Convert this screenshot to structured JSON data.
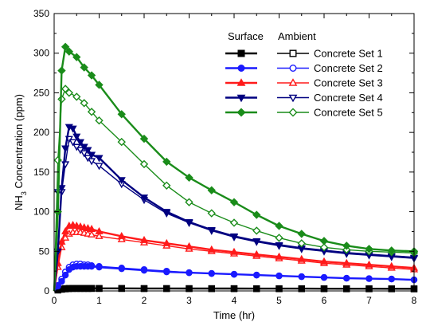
{
  "chart_data": {
    "type": "line",
    "xlabel": "Time (hr)",
    "ylabel_parts": [
      "NH",
      "3",
      " Concentration (ppm)"
    ],
    "xlim": [
      0,
      8
    ],
    "ylim": [
      0,
      350
    ],
    "xticks": [
      0,
      1,
      2,
      3,
      4,
      5,
      6,
      7,
      8
    ],
    "yticks": [
      0,
      50,
      100,
      150,
      200,
      250,
      300,
      350
    ],
    "grid": false,
    "legend": {
      "placement": "top-right",
      "header_surface": "Surface",
      "header_ambient": "Ambient"
    },
    "sets": [
      {
        "name": "Concrete Set 1",
        "color": "#000000",
        "surface_marker": "square",
        "ambient_marker": "square",
        "surface": {
          "x": [
            0,
            0.083,
            0.167,
            0.25,
            0.333,
            0.417,
            0.5,
            0.583,
            0.667,
            0.75,
            0.833,
            1,
            1.5,
            2,
            2.5,
            3,
            3.5,
            4,
            4.5,
            5,
            5.5,
            6,
            6.5,
            7,
            7.5,
            8
          ],
          "y": [
            0,
            1.5,
            2.5,
            3,
            3.2,
            3.3,
            3.3,
            3.3,
            3.3,
            3.3,
            3.3,
            3.2,
            3.2,
            3.1,
            3.1,
            3,
            3,
            3,
            2.9,
            2.9,
            2.9,
            2.8,
            2.8,
            2.8,
            2.7,
            2.7
          ]
        },
        "ambient": {
          "x": [
            0,
            0.083,
            0.167,
            0.25,
            0.333,
            0.417,
            0.5,
            0.583,
            0.667,
            0.75,
            0.833,
            1,
            1.5,
            2,
            2.5,
            3,
            3.5,
            4,
            4.5,
            5,
            5.5,
            6,
            6.5,
            7,
            7.5,
            8
          ],
          "y": [
            0,
            1,
            2,
            2.5,
            2.8,
            3,
            3,
            3,
            3,
            3,
            3,
            3,
            3,
            2.9,
            2.9,
            2.9,
            2.8,
            2.8,
            2.8,
            2.7,
            2.7,
            2.7,
            2.6,
            2.6,
            2.6,
            2.5
          ]
        }
      },
      {
        "name": "Concrete Set 2",
        "color": "#1a1aff",
        "surface_marker": "circle",
        "ambient_marker": "circle",
        "surface": {
          "x": [
            0,
            0.083,
            0.167,
            0.25,
            0.333,
            0.417,
            0.5,
            0.583,
            0.667,
            0.75,
            0.833,
            1,
            1.5,
            2,
            2.5,
            3,
            3.5,
            4,
            4.5,
            5,
            5.5,
            6,
            6.5,
            7,
            7.5,
            8
          ],
          "y": [
            0,
            6,
            12,
            20,
            27,
            30,
            31,
            31,
            31,
            31,
            31,
            30,
            28,
            26,
            24,
            23,
            22,
            21,
            20,
            19,
            18,
            17,
            16,
            15.5,
            15,
            14
          ]
        },
        "ambient": {
          "x": [
            0,
            0.083,
            0.167,
            0.25,
            0.333,
            0.417,
            0.5,
            0.583,
            0.667,
            0.75,
            0.833,
            1,
            1.5,
            2,
            2.5,
            3,
            3.5,
            4,
            4.5,
            5,
            5.5,
            6,
            6.5,
            7,
            7.5,
            8
          ],
          "y": [
            0,
            7,
            15,
            24,
            30,
            33,
            34,
            34,
            33,
            33,
            32,
            31,
            29,
            27,
            25,
            23,
            22,
            21,
            20,
            19,
            18,
            17,
            16,
            15.5,
            15,
            14
          ]
        }
      },
      {
        "name": "Concrete Set 3",
        "color": "#ff1a1a",
        "surface_marker": "triangle-up",
        "ambient_marker": "triangle-up",
        "surface": {
          "x": [
            0,
            0.083,
            0.167,
            0.25,
            0.333,
            0.417,
            0.5,
            0.583,
            0.667,
            0.75,
            0.833,
            1,
            1.5,
            2,
            2.5,
            3,
            3.5,
            4,
            4.5,
            5,
            5.5,
            6,
            6.5,
            7,
            7.5,
            8
          ],
          "y": [
            0,
            35,
            62,
            75,
            82,
            83,
            82,
            81,
            80,
            79,
            78,
            75,
            69,
            64,
            60,
            56,
            52,
            49,
            46,
            43,
            40,
            37,
            35,
            33,
            31,
            29
          ]
        },
        "ambient": {
          "x": [
            0,
            0.083,
            0.167,
            0.25,
            0.333,
            0.417,
            0.5,
            0.583,
            0.667,
            0.75,
            0.833,
            1,
            1.5,
            2,
            2.5,
            3,
            3.5,
            4,
            4.5,
            5,
            5.5,
            6,
            6.5,
            7,
            7.5,
            8
          ],
          "y": [
            0,
            30,
            55,
            67,
            72,
            74,
            74,
            74,
            73,
            72,
            71,
            69,
            65,
            61,
            57,
            53,
            50,
            47,
            44,
            41,
            38,
            35,
            33,
            31,
            29,
            27
          ]
        }
      },
      {
        "name": "Concrete Set 4",
        "color": "#000080",
        "surface_marker": "triangle-down",
        "ambient_marker": "triangle-down",
        "surface": {
          "x": [
            0,
            0.083,
            0.167,
            0.25,
            0.333,
            0.417,
            0.5,
            0.583,
            0.667,
            0.75,
            0.833,
            1,
            1.5,
            2,
            2.5,
            3,
            3.5,
            4,
            4.5,
            5,
            5.5,
            6,
            6.5,
            7,
            7.5,
            8
          ],
          "y": [
            0,
            50,
            130,
            180,
            207,
            205,
            195,
            188,
            182,
            178,
            172,
            168,
            140,
            118,
            100,
            87,
            77,
            69,
            63,
            58,
            54,
            51,
            48,
            46,
            44,
            42
          ]
        },
        "ambient": {
          "x": [
            0,
            0.083,
            0.167,
            0.25,
            0.333,
            0.417,
            0.5,
            0.583,
            0.667,
            0.75,
            0.833,
            1,
            1.5,
            2,
            2.5,
            3,
            3.5,
            4,
            4.5,
            5,
            5.5,
            6,
            6.5,
            7,
            7.5,
            8
          ],
          "y": [
            0,
            125,
            125,
            160,
            192,
            188,
            182,
            178,
            174,
            168,
            164,
            158,
            135,
            115,
            98,
            86,
            76,
            68,
            62,
            57,
            53,
            50,
            47,
            45,
            43,
            41
          ]
        }
      },
      {
        "name": "Concrete Set 5",
        "color": "#1a8c1a",
        "surface_marker": "diamond",
        "ambient_marker": "diamond",
        "surface": {
          "x": [
            0,
            0.083,
            0.167,
            0.25,
            0.333,
            0.5,
            0.667,
            0.833,
            1,
            1.5,
            2,
            2.5,
            3,
            3.5,
            4,
            4.5,
            5,
            5.5,
            6,
            6.5,
            7,
            7.5,
            8
          ],
          "y": [
            0,
            100,
            278,
            308,
            302,
            295,
            282,
            272,
            260,
            223,
            192,
            163,
            143,
            127,
            112,
            96,
            82,
            72,
            63,
            57,
            53,
            51,
            50
          ]
        },
        "ambient": {
          "x": [
            0,
            0.083,
            0.167,
            0.25,
            0.333,
            0.5,
            0.667,
            0.833,
            1,
            1.5,
            2,
            2.5,
            3,
            3.5,
            4,
            4.5,
            5,
            5.5,
            6,
            6.5,
            7,
            7.5,
            8
          ],
          "y": [
            0,
            165,
            242,
            255,
            250,
            245,
            237,
            226,
            215,
            188,
            160,
            133,
            112,
            98,
            86,
            76,
            67,
            60,
            55,
            52,
            50,
            49,
            48
          ]
        }
      }
    ]
  }
}
